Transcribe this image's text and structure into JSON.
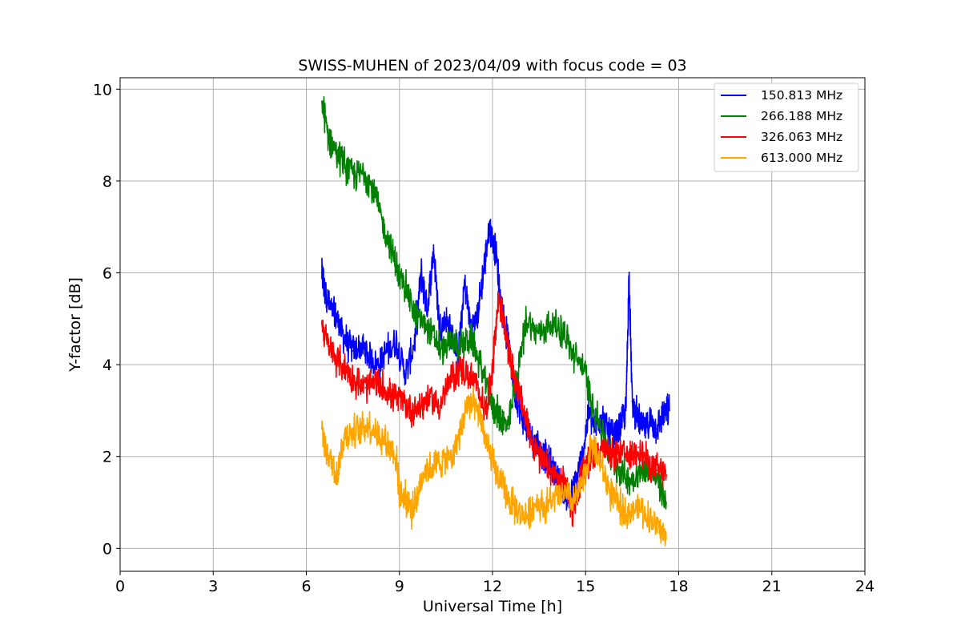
{
  "chart_data": {
    "type": "line",
    "title": "SWISS-MUHEN of 2023/04/09 with focus code = 03",
    "xlabel": "Universal Time [h]",
    "ylabel": "Y-factor [dB]",
    "xlim": [
      0,
      24
    ],
    "ylim": [
      -0.5,
      10.25
    ],
    "xticks": [
      0,
      3,
      6,
      9,
      12,
      15,
      18,
      21,
      24
    ],
    "yticks": [
      0,
      2,
      4,
      6,
      8,
      10
    ],
    "grid": true,
    "legend_position": "top-right",
    "series": [
      {
        "name": "150.813 MHz",
        "color": "#0000ff",
        "x": [
          6.5,
          6.6,
          6.8,
          7.0,
          7.2,
          7.5,
          7.8,
          8.0,
          8.3,
          8.6,
          8.9,
          9.2,
          9.5,
          9.7,
          9.9,
          10.1,
          10.3,
          10.5,
          10.7,
          10.9,
          11.1,
          11.3,
          11.5,
          11.7,
          11.9,
          12.1,
          12.3,
          12.5,
          12.7,
          12.9,
          13.1,
          13.3,
          13.5,
          13.7,
          13.9,
          14.1,
          14.3,
          14.5,
          14.7,
          14.9,
          15.1,
          15.3,
          15.5,
          15.7,
          15.9,
          16.1,
          16.3,
          16.4,
          16.5,
          16.7,
          16.9,
          17.1,
          17.3,
          17.5,
          17.7
        ],
        "y": [
          6.0,
          5.6,
          5.2,
          5.0,
          4.6,
          4.3,
          4.4,
          4.2,
          4.0,
          4.3,
          4.5,
          3.8,
          4.5,
          6.0,
          5.2,
          6.5,
          4.8,
          5.0,
          4.6,
          4.2,
          5.8,
          4.8,
          5.0,
          6.0,
          7.0,
          6.5,
          5.2,
          4.5,
          3.5,
          3.0,
          2.6,
          2.4,
          2.2,
          2.0,
          1.8,
          1.5,
          1.3,
          1.0,
          1.5,
          2.0,
          3.0,
          2.6,
          2.9,
          2.6,
          2.4,
          2.6,
          3.0,
          6.0,
          3.2,
          2.8,
          2.6,
          2.8,
          2.6,
          2.9,
          3.0
        ]
      },
      {
        "name": "266.188 MHz",
        "color": "#008000",
        "x": [
          6.5,
          6.7,
          7.0,
          7.3,
          7.6,
          7.9,
          8.2,
          8.5,
          8.8,
          9.0,
          9.2,
          9.5,
          9.8,
          10.1,
          10.4,
          10.7,
          11.0,
          11.3,
          11.6,
          11.9,
          12.1,
          12.3,
          12.5,
          12.8,
          13.1,
          13.4,
          13.7,
          14.0,
          14.3,
          14.6,
          14.9,
          15.2,
          15.5,
          15.8,
          16.1,
          16.4,
          16.7,
          17.0,
          17.3,
          17.6
        ],
        "y": [
          9.7,
          9.0,
          8.6,
          8.3,
          8.1,
          8.2,
          7.7,
          7.0,
          6.4,
          5.9,
          5.7,
          5.1,
          4.9,
          4.6,
          4.3,
          4.5,
          4.4,
          4.6,
          4.0,
          3.3,
          3.0,
          2.8,
          2.6,
          3.8,
          5.0,
          4.7,
          4.8,
          4.9,
          4.7,
          4.2,
          4.0,
          3.2,
          2.6,
          2.0,
          1.7,
          1.5,
          1.6,
          1.8,
          1.5,
          1.0
        ]
      },
      {
        "name": "326.063 MHz",
        "color": "#ff0000",
        "x": [
          6.5,
          6.7,
          7.0,
          7.3,
          7.6,
          7.9,
          8.2,
          8.5,
          8.8,
          9.1,
          9.4,
          9.7,
          10.0,
          10.3,
          10.6,
          10.9,
          11.2,
          11.5,
          11.8,
          12.0,
          12.2,
          12.4,
          12.6,
          12.8,
          13.0,
          13.2,
          13.5,
          13.8,
          14.1,
          14.4,
          14.6,
          14.8,
          15.0,
          15.2,
          15.5,
          15.8,
          16.1,
          16.4,
          16.7,
          17.0,
          17.3,
          17.6
        ],
        "y": [
          4.9,
          4.4,
          4.1,
          3.9,
          3.6,
          3.5,
          3.6,
          3.5,
          3.3,
          3.2,
          3.0,
          3.1,
          3.3,
          3.1,
          3.6,
          3.9,
          3.8,
          3.5,
          3.0,
          4.0,
          5.5,
          4.8,
          4.0,
          3.5,
          3.0,
          2.5,
          2.0,
          1.7,
          1.5,
          1.3,
          0.8,
          1.4,
          1.8,
          2.0,
          2.2,
          2.0,
          2.1,
          2.0,
          2.2,
          1.9,
          1.7,
          1.6
        ]
      },
      {
        "name": "613.000 MHz",
        "color": "#ffa500",
        "x": [
          6.5,
          6.6,
          6.8,
          7.0,
          7.2,
          7.4,
          7.7,
          8.0,
          8.3,
          8.6,
          8.9,
          9.0,
          9.2,
          9.4,
          9.6,
          9.8,
          10.1,
          10.4,
          10.7,
          11.0,
          11.2,
          11.4,
          11.6,
          11.8,
          12.0,
          12.2,
          12.5,
          12.8,
          13.1,
          13.4,
          13.7,
          14.0,
          14.3,
          14.6,
          14.9,
          15.2,
          15.5,
          15.8,
          16.1,
          16.4,
          16.7,
          17.0,
          17.3,
          17.6
        ],
        "y": [
          2.6,
          2.2,
          1.9,
          1.6,
          2.4,
          2.5,
          2.6,
          2.7,
          2.5,
          2.3,
          2.0,
          1.2,
          1.1,
          0.8,
          1.2,
          1.7,
          1.8,
          1.9,
          2.0,
          2.6,
          3.2,
          3.1,
          2.9,
          2.3,
          1.9,
          1.5,
          1.1,
          0.8,
          0.7,
          1.0,
          0.9,
          1.1,
          1.2,
          1.0,
          1.4,
          2.3,
          1.8,
          1.2,
          0.9,
          0.8,
          0.9,
          0.7,
          0.5,
          0.2
        ]
      }
    ]
  }
}
